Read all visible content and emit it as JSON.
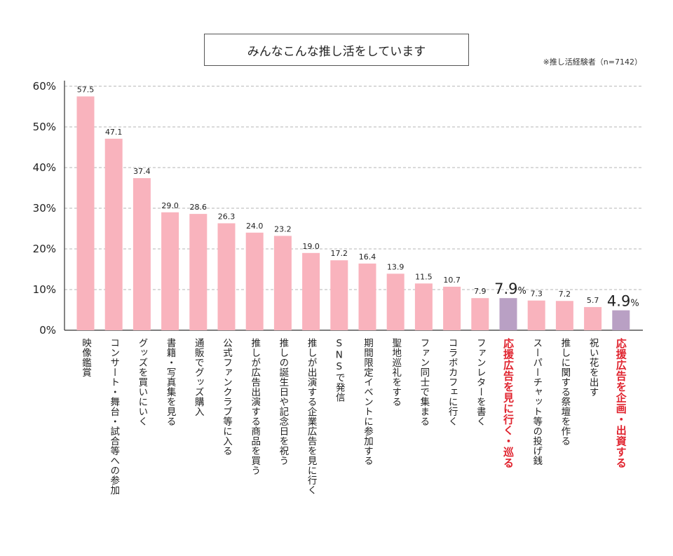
{
  "chart_data": {
    "type": "bar",
    "title": "みんなこんな推し活をしています",
    "note": "※推し活経験者（n=7142）",
    "ylim": [
      0,
      60
    ],
    "yticks": [
      "0%",
      "10%",
      "20%",
      "30%",
      "40%",
      "50%",
      "60%"
    ],
    "grid": true,
    "colors": {
      "normal": "#F9B3BD",
      "highlight": "#B9A0C4",
      "highlight_text": "#E0232E"
    },
    "categories": [
      "映像鑑賞",
      "コンサート・舞台・試合等への参加",
      "グッズを買いにいく",
      "書籍・写真集を見る",
      "通販でグッズ購入",
      "公式ファンクラブ等に入る",
      "推しが広告出演する商品を買う",
      "推しの誕生日や記念日を祝う",
      "推しが出演する企業広告を見に行く",
      "SNSで発信",
      "期間限定イベントに参加する",
      "聖地巡礼をする",
      "ファン同士で集まる",
      "コラボカフェに行く",
      "ファンレターを書く",
      "応援広告を見に行く・巡る",
      "スーパーチャット等の投げ銭",
      "推しに関する祭壇を作る",
      "祝い花を出す",
      "応援広告を企画・出資する"
    ],
    "values": [
      57.5,
      47.1,
      37.4,
      29.0,
      28.6,
      26.3,
      24.0,
      23.2,
      19.0,
      17.2,
      16.4,
      13.9,
      11.5,
      10.7,
      7.9,
      7.9,
      7.3,
      7.2,
      5.7,
      4.9
    ],
    "value_labels": [
      "57.5",
      "47.1",
      "37.4",
      "29.0",
      "28.6",
      "26.3",
      "24.0",
      "23.2",
      "19.0",
      "17.2",
      "16.4",
      "13.9",
      "11.5",
      "10.7",
      "7.9",
      "7.9%",
      "7.3",
      "7.2",
      "5.7",
      "4.9%"
    ],
    "highlight": [
      false,
      false,
      false,
      false,
      false,
      false,
      false,
      false,
      false,
      false,
      false,
      false,
      false,
      false,
      false,
      true,
      false,
      false,
      false,
      true
    ]
  }
}
